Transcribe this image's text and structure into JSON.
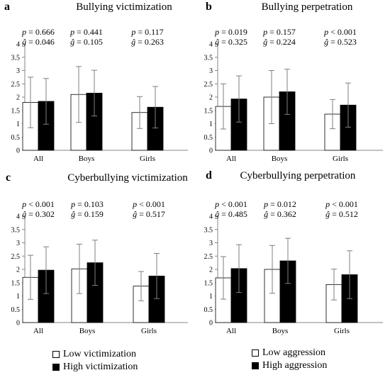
{
  "chart_data": [
    {
      "type": "bar",
      "panel_letter": "a",
      "title": "Bullying victimization",
      "categories": [
        "All",
        "Boys",
        "Girls"
      ],
      "series": [
        {
          "values": [
            1.8,
            2.1,
            1.42
          ],
          "errors": [
            0.95,
            1.05,
            0.6
          ]
        },
        {
          "values": [
            1.84,
            2.15,
            1.62
          ],
          "errors": [
            0.86,
            0.86,
            0.78
          ]
        }
      ],
      "stats": [
        {
          "p": "p = 0.666",
          "g": "ĝ = 0.046"
        },
        {
          "p": "p = 0.441",
          "g": "ĝ = 0.105"
        },
        {
          "p": "p = 0.117",
          "g": "ĝ = 0.263"
        }
      ],
      "yticks": [
        "0",
        "0.5",
        "1",
        "1.5",
        "2",
        "2.5",
        "3",
        "3.5",
        "4"
      ],
      "ylim": [
        0,
        4
      ]
    },
    {
      "type": "bar",
      "panel_letter": "b",
      "title": "Bullying perpetration",
      "categories": [
        "All",
        "Boys",
        "Girls"
      ],
      "series": [
        {
          "values": [
            1.65,
            2.0,
            1.36
          ],
          "errors": [
            0.85,
            1.0,
            0.55
          ]
        },
        {
          "values": [
            1.93,
            2.2,
            1.7
          ],
          "errors": [
            0.87,
            0.85,
            0.83
          ]
        }
      ],
      "stats": [
        {
          "p": "p = 0.019",
          "g": "ĝ = 0.325"
        },
        {
          "p": "p = 0.157",
          "g": "ĝ = 0.224"
        },
        {
          "p": "p < 0.001",
          "g": "ĝ = 0.523"
        }
      ],
      "yticks": [
        "0",
        "0.5",
        "1",
        "1.5",
        "2",
        "2.5",
        "3",
        "3.5",
        "4"
      ],
      "ylim": [
        0,
        4
      ]
    },
    {
      "type": "bar",
      "panel_letter": "c",
      "title": "Cyberbullying victimization",
      "categories": [
        "All",
        "Boys",
        "Girls"
      ],
      "series": [
        {
          "values": [
            1.7,
            2.02,
            1.37
          ],
          "errors": [
            0.83,
            0.93,
            0.55
          ]
        },
        {
          "values": [
            1.97,
            2.25,
            1.75
          ],
          "errors": [
            0.88,
            0.85,
            0.85
          ]
        }
      ],
      "stats": [
        {
          "p": "p < 0.001",
          "g": "ĝ = 0.302"
        },
        {
          "p": "p = 0.103",
          "g": "ĝ = 0.159"
        },
        {
          "p": "p < 0.001",
          "g": "ĝ = 0.517"
        }
      ],
      "yticks": [
        "0",
        "0.5",
        "1",
        "1.5",
        "2",
        "2.5",
        "3",
        "3.5",
        "4"
      ],
      "ylim": [
        0,
        4
      ]
    },
    {
      "type": "bar",
      "panel_letter": "d",
      "title": "Cyberbullying perpetration",
      "categories": [
        "All",
        "Boys",
        "Girls"
      ],
      "series": [
        {
          "values": [
            1.68,
            2.0,
            1.43
          ],
          "errors": [
            0.8,
            0.9,
            0.58
          ]
        },
        {
          "values": [
            2.03,
            2.32,
            1.8
          ],
          "errors": [
            0.9,
            0.85,
            0.9
          ]
        }
      ],
      "stats": [
        {
          "p": "p < 0.001",
          "g": "ĝ = 0.485"
        },
        {
          "p": "p = 0.012",
          "g": "ĝ = 0.362"
        },
        {
          "p": "p < 0.001",
          "g": "ĝ = 0.512"
        }
      ],
      "yticks": [
        "0",
        "0.5",
        "1",
        "1.5",
        "2",
        "2.5",
        "3",
        "3.5",
        "4"
      ],
      "ylim": [
        0,
        4
      ]
    }
  ],
  "legends": [
    {
      "items": [
        {
          "label": "Low victimization",
          "color": "#ffffff"
        },
        {
          "label": "High victimization",
          "color": "#000000"
        }
      ]
    },
    {
      "items": [
        {
          "label": "Low aggression",
          "color": "#ffffff"
        },
        {
          "label": "High aggression",
          "color": "#000000"
        }
      ]
    }
  ],
  "colors": {
    "low": "#ffffff",
    "high": "#000000",
    "axis": "#868686",
    "error": "#7f7f7f"
  }
}
